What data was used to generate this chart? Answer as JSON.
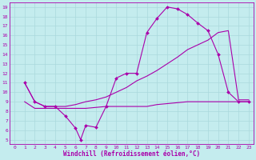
{
  "xlabel": "Windchill (Refroidissement éolien,°C)",
  "background_color": "#c4ecee",
  "grid_color": "#aad8dc",
  "line_color": "#aa00aa",
  "xlim": [
    -0.5,
    23.5
  ],
  "ylim": [
    4.5,
    19.5
  ],
  "xticks": [
    0,
    1,
    2,
    3,
    4,
    5,
    6,
    7,
    8,
    9,
    10,
    11,
    12,
    13,
    14,
    15,
    16,
    17,
    18,
    19,
    20,
    21,
    22,
    23
  ],
  "yticks": [
    5,
    6,
    7,
    8,
    9,
    10,
    11,
    12,
    13,
    14,
    15,
    16,
    17,
    18,
    19
  ],
  "line1_x": [
    1,
    2,
    3,
    4,
    5,
    6,
    6.5,
    7,
    8,
    9,
    10,
    11,
    12,
    13,
    14,
    15,
    16,
    17,
    18,
    19,
    20,
    21,
    22,
    23
  ],
  "line1_y": [
    11,
    9,
    8.5,
    8.5,
    7.5,
    6.2,
    5.0,
    6.5,
    6.3,
    8.5,
    11.5,
    12.0,
    12.0,
    16.3,
    17.8,
    19.0,
    18.8,
    18.2,
    17.3,
    16.5,
    14.0,
    10.0,
    9.0,
    9.0
  ],
  "line2_x": [
    1,
    2,
    3,
    4,
    5,
    6,
    7,
    8,
    9,
    10,
    11,
    12,
    13,
    14,
    15,
    16,
    17,
    18,
    19,
    20,
    21,
    22,
    23
  ],
  "line2_y": [
    9.0,
    8.3,
    8.3,
    8.3,
    8.3,
    8.3,
    8.3,
    8.4,
    8.5,
    8.5,
    8.5,
    8.5,
    8.5,
    8.7,
    8.8,
    8.9,
    9.0,
    9.0,
    9.0,
    9.0,
    9.0,
    9.0,
    9.0
  ],
  "line3_x": [
    1,
    2,
    3,
    4,
    5,
    6,
    7,
    8,
    9,
    10,
    11,
    12,
    13,
    14,
    15,
    16,
    17,
    18,
    19,
    20,
    21,
    22,
    23
  ],
  "line3_y": [
    11.0,
    9.0,
    8.5,
    8.5,
    8.5,
    8.7,
    9.0,
    9.2,
    9.5,
    10.0,
    10.5,
    11.2,
    11.7,
    12.3,
    13.0,
    13.7,
    14.5,
    15.0,
    15.5,
    16.3,
    16.5,
    9.2,
    9.2
  ]
}
